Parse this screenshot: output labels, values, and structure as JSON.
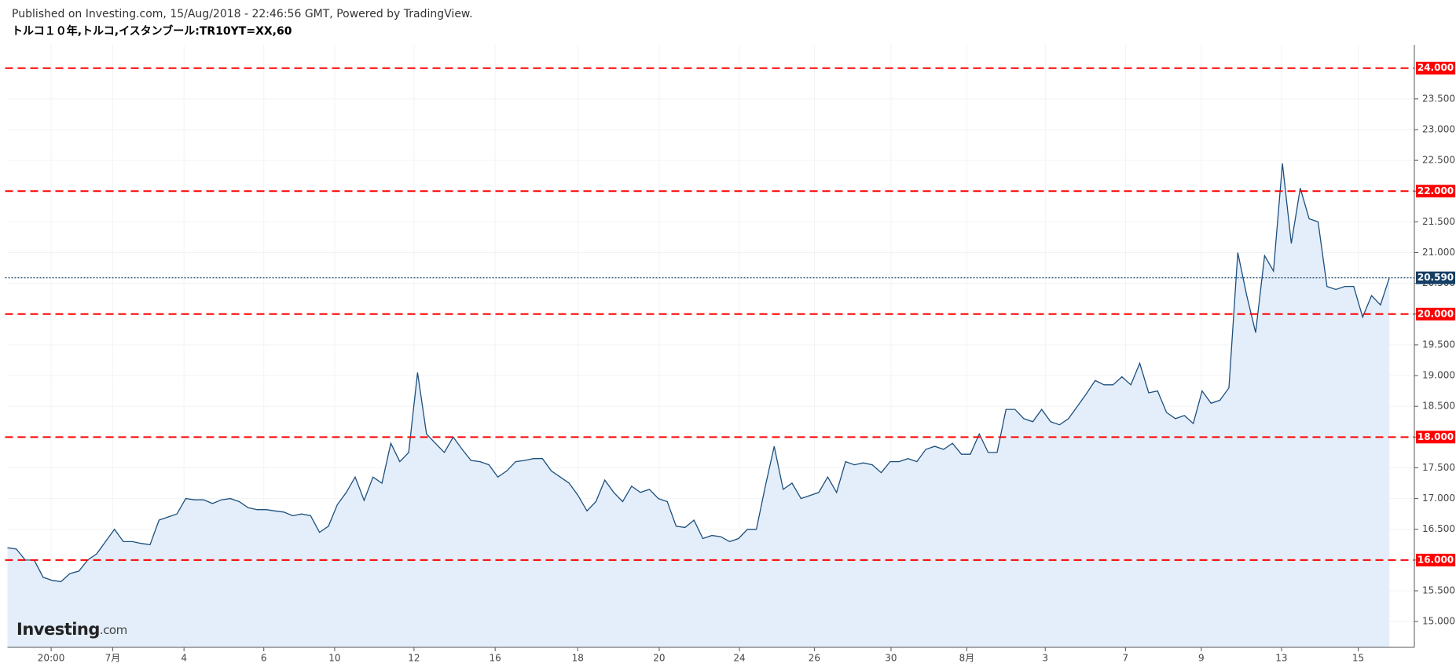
{
  "header": "Published on Investing.com, 15/Aug/2018 - 22:46:56 GMT, Powered by TradingView.",
  "chart_data": {
    "type": "area",
    "title": "トルコ１０年,トルコ,イスタンブール:TR10YT=XX,60",
    "watermark": {
      "brand": "Investing",
      "suffix": ".com"
    },
    "color": "#1c4f7c",
    "fill": "#e3eefa",
    "grid": true,
    "values": [
      16.2,
      16.18,
      16.0,
      16.0,
      15.72,
      15.67,
      15.65,
      15.78,
      15.82,
      16.0,
      16.1,
      16.3,
      16.5,
      16.3,
      16.3,
      16.27,
      16.25,
      16.65,
      16.7,
      16.75,
      17.0,
      16.98,
      16.98,
      16.92,
      16.98,
      17.0,
      16.95,
      16.85,
      16.82,
      16.82,
      16.8,
      16.78,
      16.72,
      16.75,
      16.72,
      16.45,
      16.55,
      16.9,
      17.1,
      17.35,
      16.97,
      17.35,
      17.25,
      17.9,
      17.6,
      17.75,
      19.05,
      18.05,
      17.9,
      17.75,
      18.0,
      17.8,
      17.62,
      17.6,
      17.55,
      17.35,
      17.45,
      17.6,
      17.62,
      17.65,
      17.65,
      17.45,
      17.35,
      17.25,
      17.05,
      16.8,
      16.95,
      17.3,
      17.1,
      16.95,
      17.2,
      17.1,
      17.15,
      17.0,
      16.95,
      16.55,
      16.53,
      16.65,
      16.35,
      16.4,
      16.38,
      16.3,
      16.35,
      16.5,
      16.5,
      17.2,
      17.85,
      17.15,
      17.25,
      17.0,
      17.05,
      17.1,
      17.35,
      17.1,
      17.6,
      17.55,
      17.58,
      17.55,
      17.42,
      17.6,
      17.6,
      17.65,
      17.6,
      17.8,
      17.85,
      17.8,
      17.9,
      17.72,
      17.72,
      18.05,
      17.75,
      17.75,
      18.45,
      18.45,
      18.3,
      18.25,
      18.45,
      18.25,
      18.2,
      18.3,
      18.5,
      18.7,
      18.92,
      18.85,
      18.85,
      18.98,
      18.85,
      19.2,
      18.72,
      18.75,
      18.4,
      18.3,
      18.35,
      18.22,
      18.75,
      18.55,
      18.6,
      18.8,
      21.0,
      20.3,
      19.7,
      20.95,
      20.7,
      22.45,
      21.15,
      22.05,
      21.55,
      21.5,
      20.45,
      20.4,
      20.45,
      20.45,
      19.95,
      20.3,
      20.15,
      20.59
    ],
    "xlim": [
      0,
      157.8
    ],
    "xticks": [
      {
        "value": 4.9,
        "label": "20:00"
      },
      {
        "value": 11.8,
        "label": "7月"
      },
      {
        "value": 19.8,
        "label": "4"
      },
      {
        "value": 28.75,
        "label": "6"
      },
      {
        "value": 36.7,
        "label": "10"
      },
      {
        "value": 45.6,
        "label": "12"
      },
      {
        "value": 54.7,
        "label": "16"
      },
      {
        "value": 63.96,
        "label": "18"
      },
      {
        "value": 73.1,
        "label": "20"
      },
      {
        "value": 82.1,
        "label": "24"
      },
      {
        "value": 90.5,
        "label": "26"
      },
      {
        "value": 99.1,
        "label": "30"
      },
      {
        "value": 107.6,
        "label": "8月"
      },
      {
        "value": 116.4,
        "label": "3"
      },
      {
        "value": 125.4,
        "label": "7"
      },
      {
        "value": 133.9,
        "label": "9"
      },
      {
        "value": 142.9,
        "label": "13"
      },
      {
        "value": 151.5,
        "label": "15"
      }
    ],
    "ylim": [
      14.58,
      24.38
    ],
    "yticks": [
      {
        "value": 15,
        "label": "15.000"
      },
      {
        "value": 15.5,
        "label": "15.500"
      },
      {
        "value": 16,
        "label": "16.000"
      },
      {
        "value": 16.5,
        "label": "16.500"
      },
      {
        "value": 17,
        "label": "17.000"
      },
      {
        "value": 17.5,
        "label": "17.500"
      },
      {
        "value": 18,
        "label": "18.000"
      },
      {
        "value": 18.5,
        "label": "18.500"
      },
      {
        "value": 19,
        "label": "19.000"
      },
      {
        "value": 19.5,
        "label": "19.500"
      },
      {
        "value": 20,
        "label": "20.000"
      },
      {
        "value": 20.5,
        "label": "20.500"
      },
      {
        "value": 21,
        "label": "21.000"
      },
      {
        "value": 21.5,
        "label": "21.500"
      },
      {
        "value": 22,
        "label": "22.000"
      },
      {
        "value": 22.5,
        "label": "22.500"
      },
      {
        "value": 23,
        "label": "23.000"
      },
      {
        "value": 23.5,
        "label": "23.500"
      }
    ],
    "horizontal_lines": {
      "color": "#ff0000",
      "lines": [
        {
          "value": 24,
          "label": "24.000"
        },
        {
          "value": 22,
          "label": "22.000"
        },
        {
          "value": 20,
          "label": "20.000"
        },
        {
          "value": 18,
          "label": "18.000"
        },
        {
          "value": 16,
          "label": "16.000"
        }
      ]
    },
    "last_price": {
      "value": 20.59,
      "label": "20.590",
      "color": "#163e64"
    }
  }
}
